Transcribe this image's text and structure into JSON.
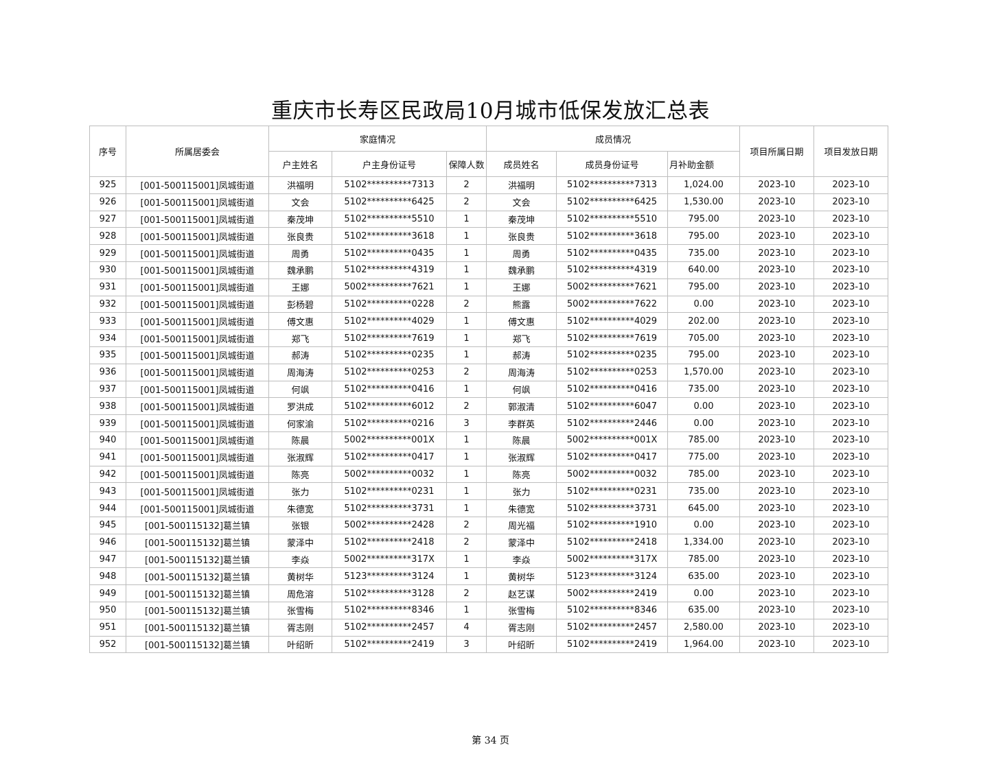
{
  "title": "重庆市长寿区民政局10月城市低保发放汇总表",
  "header": {
    "seq": "序号",
    "committee": "所属居委会",
    "family_group": "家庭情况",
    "member_group": "成员情况",
    "head_name": "户主姓名",
    "head_id": "户主身份证号",
    "count": "保障人数",
    "member_name": "成员姓名",
    "member_id": "成员身份证号",
    "amount": "月补助金额",
    "belong_date": "项目所属日期",
    "issue_date": "项目发放日期"
  },
  "rows": [
    [
      "925",
      "[001-500115001]凤城街道",
      "洪福明",
      "5102**********7313",
      "2",
      "洪福明",
      "5102**********7313",
      "1,024.00",
      "2023-10",
      "2023-10"
    ],
    [
      "926",
      "[001-500115001]凤城街道",
      "文会",
      "5102**********6425",
      "2",
      "文会",
      "5102**********6425",
      "1,530.00",
      "2023-10",
      "2023-10"
    ],
    [
      "927",
      "[001-500115001]凤城街道",
      "秦茂坤",
      "5102**********5510",
      "1",
      "秦茂坤",
      "5102**********5510",
      "795.00",
      "2023-10",
      "2023-10"
    ],
    [
      "928",
      "[001-500115001]凤城街道",
      "张良贵",
      "5102**********3618",
      "1",
      "张良贵",
      "5102**********3618",
      "795.00",
      "2023-10",
      "2023-10"
    ],
    [
      "929",
      "[001-500115001]凤城街道",
      "周勇",
      "5102**********0435",
      "1",
      "周勇",
      "5102**********0435",
      "735.00",
      "2023-10",
      "2023-10"
    ],
    [
      "930",
      "[001-500115001]凤城街道",
      "魏承鹏",
      "5102**********4319",
      "1",
      "魏承鹏",
      "5102**********4319",
      "640.00",
      "2023-10",
      "2023-10"
    ],
    [
      "931",
      "[001-500115001]凤城街道",
      "王娜",
      "5002**********7621",
      "1",
      "王娜",
      "5002**********7621",
      "795.00",
      "2023-10",
      "2023-10"
    ],
    [
      "932",
      "[001-500115001]凤城街道",
      "彭杨碧",
      "5102**********0228",
      "2",
      "熊露",
      "5002**********7622",
      "0.00",
      "2023-10",
      "2023-10"
    ],
    [
      "933",
      "[001-500115001]凤城街道",
      "傅文惠",
      "5102**********4029",
      "1",
      "傅文惠",
      "5102**********4029",
      "202.00",
      "2023-10",
      "2023-10"
    ],
    [
      "934",
      "[001-500115001]凤城街道",
      "郑飞",
      "5102**********7619",
      "1",
      "郑飞",
      "5102**********7619",
      "705.00",
      "2023-10",
      "2023-10"
    ],
    [
      "935",
      "[001-500115001]凤城街道",
      "郝涛",
      "5102**********0235",
      "1",
      "郝涛",
      "5102**********0235",
      "795.00",
      "2023-10",
      "2023-10"
    ],
    [
      "936",
      "[001-500115001]凤城街道",
      "周海涛",
      "5102**********0253",
      "2",
      "周海涛",
      "5102**********0253",
      "1,570.00",
      "2023-10",
      "2023-10"
    ],
    [
      "937",
      "[001-500115001]凤城街道",
      "何飒",
      "5102**********0416",
      "1",
      "何飒",
      "5102**********0416",
      "735.00",
      "2023-10",
      "2023-10"
    ],
    [
      "938",
      "[001-500115001]凤城街道",
      "罗洪成",
      "5102**********6012",
      "2",
      "郭淑清",
      "5102**********6047",
      "0.00",
      "2023-10",
      "2023-10"
    ],
    [
      "939",
      "[001-500115001]凤城街道",
      "何家渝",
      "5102**********0216",
      "3",
      "李群英",
      "5102**********2446",
      "0.00",
      "2023-10",
      "2023-10"
    ],
    [
      "940",
      "[001-500115001]凤城街道",
      "陈晨",
      "5002**********001X",
      "1",
      "陈晨",
      "5002**********001X",
      "785.00",
      "2023-10",
      "2023-10"
    ],
    [
      "941",
      "[001-500115001]凤城街道",
      "张淑辉",
      "5102**********0417",
      "1",
      "张淑辉",
      "5102**********0417",
      "775.00",
      "2023-10",
      "2023-10"
    ],
    [
      "942",
      "[001-500115001]凤城街道",
      "陈亮",
      "5002**********0032",
      "1",
      "陈亮",
      "5002**********0032",
      "785.00",
      "2023-10",
      "2023-10"
    ],
    [
      "943",
      "[001-500115001]凤城街道",
      "张力",
      "5102**********0231",
      "1",
      "张力",
      "5102**********0231",
      "735.00",
      "2023-10",
      "2023-10"
    ],
    [
      "944",
      "[001-500115001]凤城街道",
      "朱德宽",
      "5102**********3731",
      "1",
      "朱德宽",
      "5102**********3731",
      "645.00",
      "2023-10",
      "2023-10"
    ],
    [
      "945",
      "[001-500115132]葛兰镇",
      "张银",
      "5002**********2428",
      "2",
      "周光福",
      "5102**********1910",
      "0.00",
      "2023-10",
      "2023-10"
    ],
    [
      "946",
      "[001-500115132]葛兰镇",
      "蒙泽中",
      "5102**********2418",
      "2",
      "蒙泽中",
      "5102**********2418",
      "1,334.00",
      "2023-10",
      "2023-10"
    ],
    [
      "947",
      "[001-500115132]葛兰镇",
      "李焱",
      "5002**********317X",
      "1",
      "李焱",
      "5002**********317X",
      "785.00",
      "2023-10",
      "2023-10"
    ],
    [
      "948",
      "[001-500115132]葛兰镇",
      "黄树华",
      "5123**********3124",
      "1",
      "黄树华",
      "5123**********3124",
      "635.00",
      "2023-10",
      "2023-10"
    ],
    [
      "949",
      "[001-500115132]葛兰镇",
      "周危溶",
      "5102**********3128",
      "2",
      "赵艺谋",
      "5002**********2419",
      "0.00",
      "2023-10",
      "2023-10"
    ],
    [
      "950",
      "[001-500115132]葛兰镇",
      "张雪梅",
      "5102**********8346",
      "1",
      "张雪梅",
      "5102**********8346",
      "635.00",
      "2023-10",
      "2023-10"
    ],
    [
      "951",
      "[001-500115132]葛兰镇",
      "胥志刚",
      "5102**********2457",
      "4",
      "胥志刚",
      "5102**********2457",
      "2,580.00",
      "2023-10",
      "2023-10"
    ],
    [
      "952",
      "[001-500115132]葛兰镇",
      "叶绍昕",
      "5102**********2419",
      "3",
      "叶绍昕",
      "5102**********2419",
      "1,964.00",
      "2023-10",
      "2023-10"
    ]
  ],
  "footer": "第 34 页"
}
